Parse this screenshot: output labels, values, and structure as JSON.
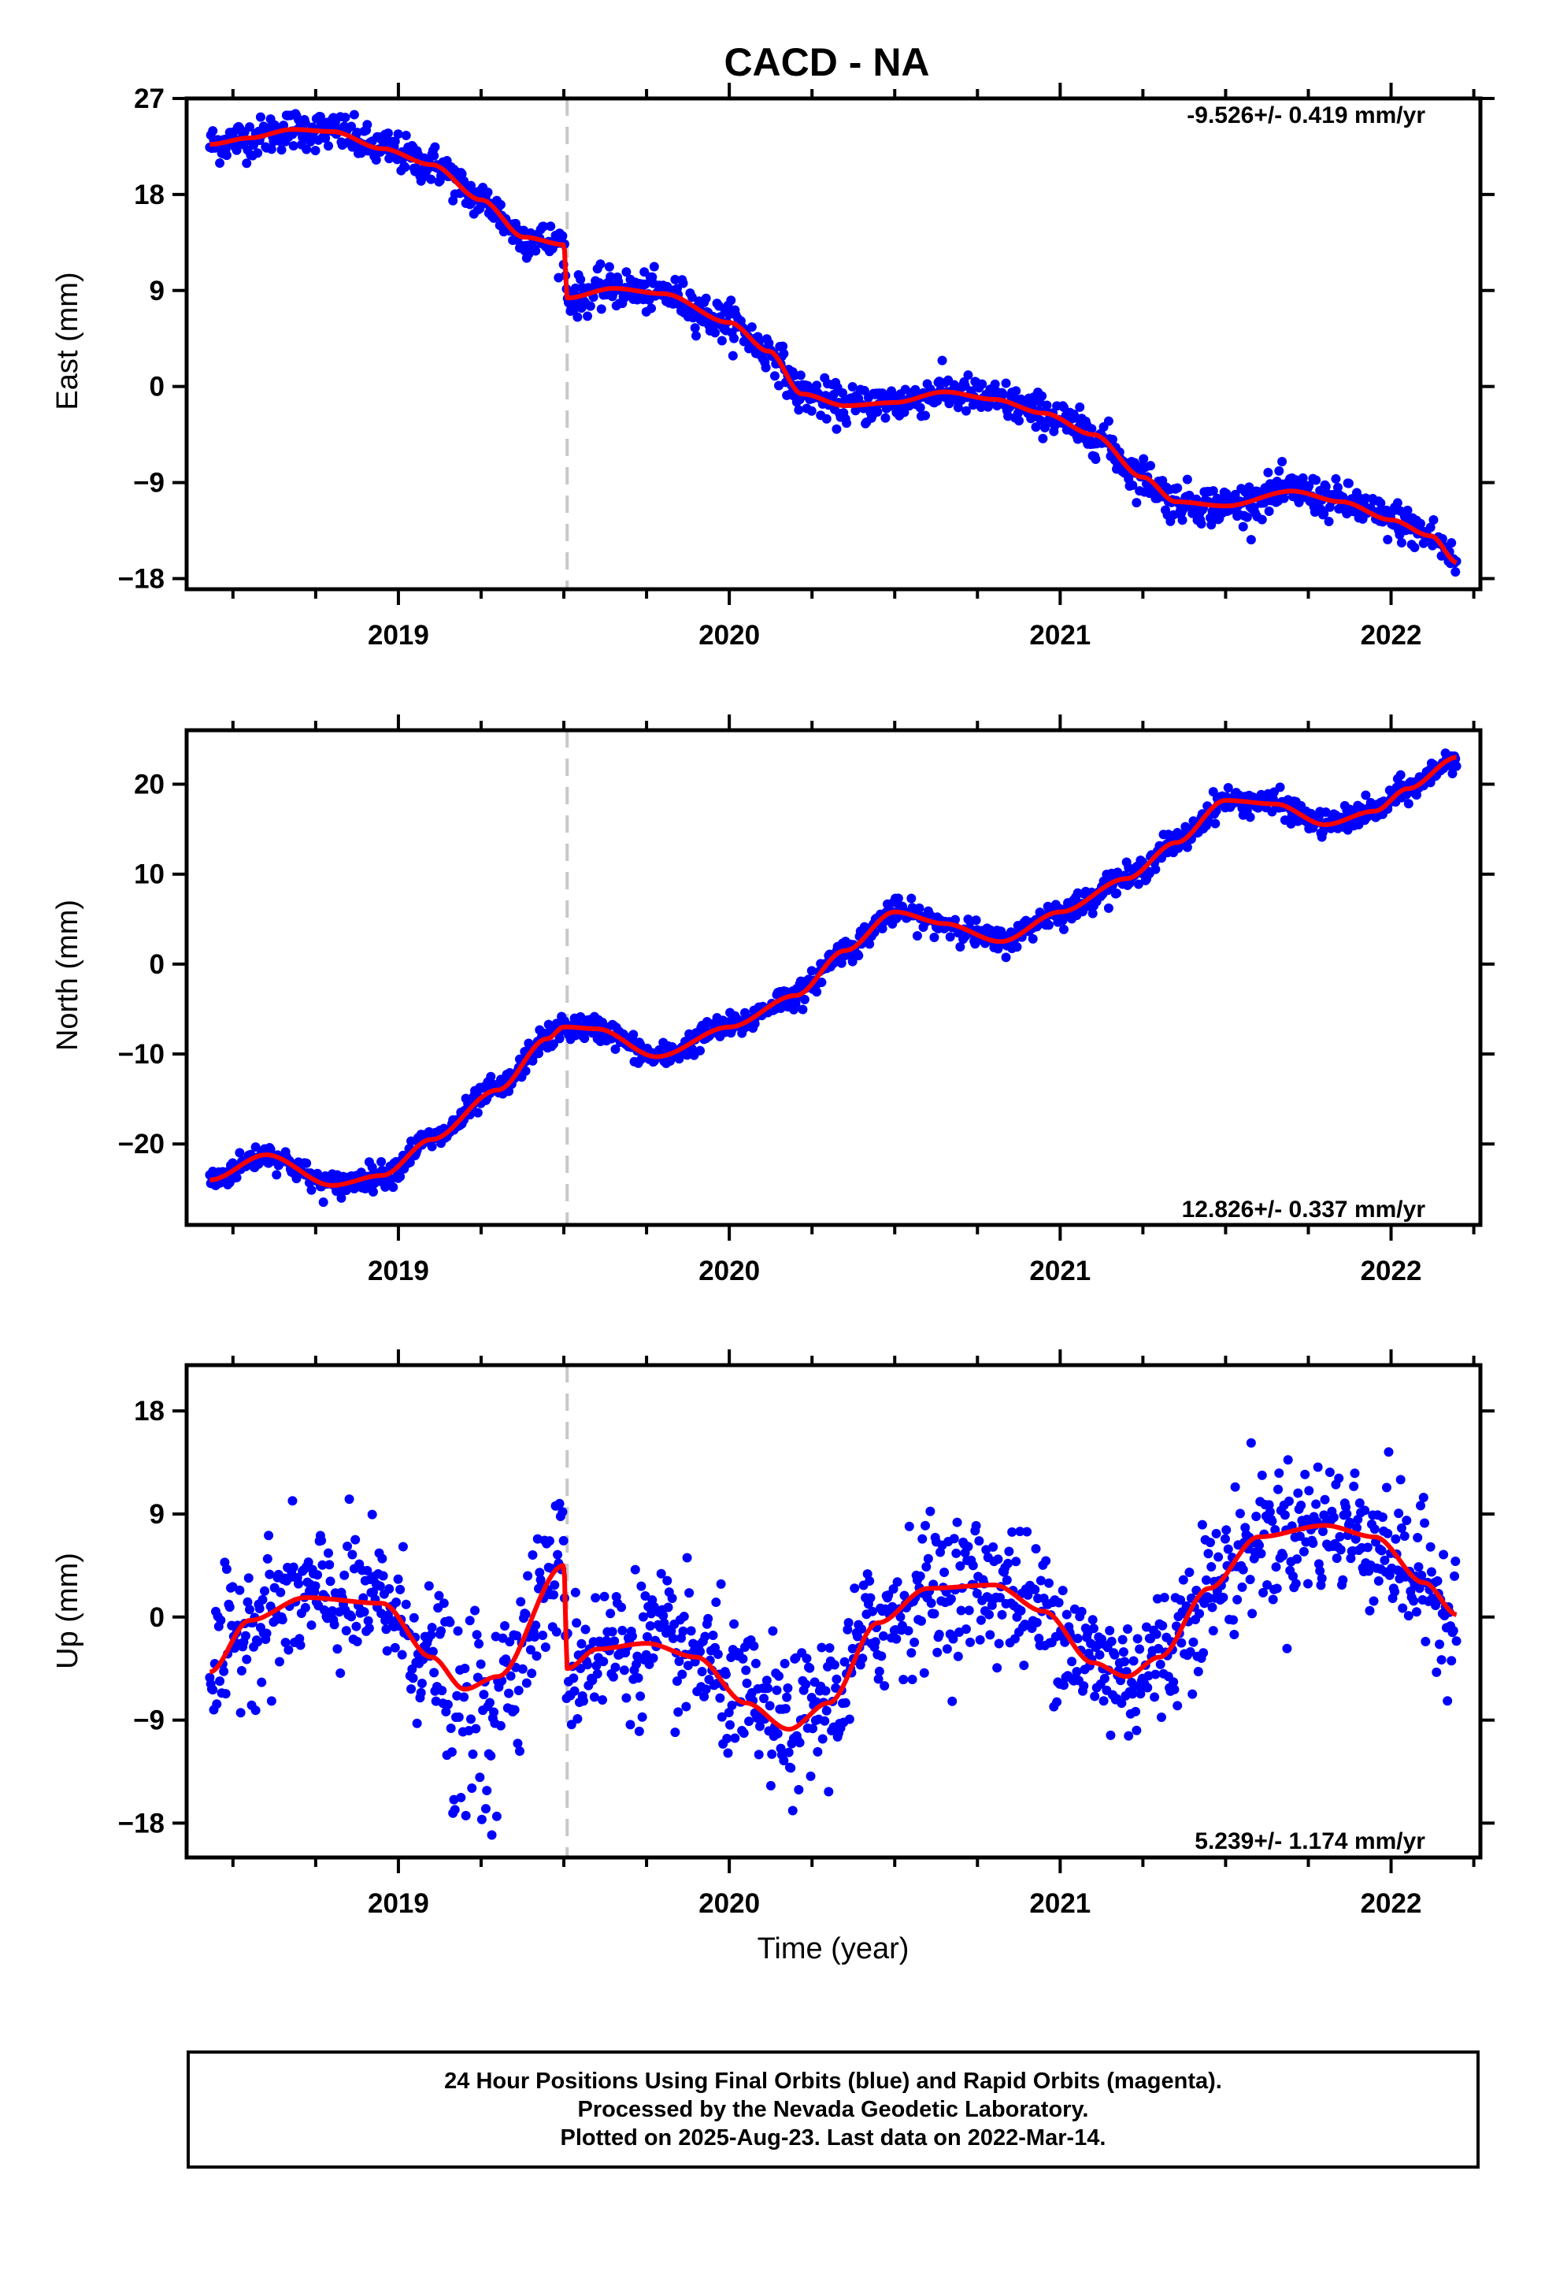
{
  "title": "CACD - NA",
  "colors": {
    "points": "#0000ff",
    "model": "#ff0000",
    "event_line": "#c8c8c8",
    "frame": "#000000"
  },
  "xlabel": "Time (year)",
  "caption": [
    "24 Hour Positions Using Final Orbits (blue) and Rapid Orbits (magenta).",
    "Processed by the Nevada Geodetic Laboratory.",
    "Plotted on 2025-Aug-23. Last data on 2022-Mar-14."
  ],
  "chart_data": [
    {
      "type": "scatter",
      "component": "east",
      "ylabel": "East (mm)",
      "rate_label": "-9.526+/- 0.419 mm/yr",
      "xlim": [
        2018.36,
        2022.27
      ],
      "ylim": [
        -19,
        27
      ],
      "yticks": [
        27,
        18,
        9,
        0,
        -9,
        -18
      ],
      "ytick_labels": [
        "27",
        "18",
        "9",
        "0",
        "-9",
        "-18"
      ],
      "xticks": [
        2019,
        2020,
        2021,
        2022
      ],
      "xtick_labels": [
        "2019",
        "2020",
        "2021",
        "2022"
      ],
      "event_line_x": 2019.51,
      "scatter_sd": 0.9,
      "model_knots": [
        [
          2018.43,
          22.7
        ],
        [
          2018.55,
          23.3
        ],
        [
          2018.68,
          24.1
        ],
        [
          2018.8,
          23.9
        ],
        [
          2018.95,
          22.3
        ],
        [
          2019.1,
          20.8
        ],
        [
          2019.25,
          17.5
        ],
        [
          2019.38,
          14.0
        ],
        [
          2019.5,
          13.3
        ],
        [
          2019.51,
          8.3
        ],
        [
          2019.65,
          9.2
        ],
        [
          2019.8,
          8.7
        ],
        [
          2020.0,
          6.0
        ],
        [
          2020.12,
          3.3
        ],
        [
          2020.22,
          -0.7
        ],
        [
          2020.35,
          -1.8
        ],
        [
          2020.5,
          -1.5
        ],
        [
          2020.65,
          -0.5
        ],
        [
          2020.8,
          -1.2
        ],
        [
          2020.95,
          -2.5
        ],
        [
          2021.1,
          -4.5
        ],
        [
          2021.25,
          -8.5
        ],
        [
          2021.35,
          -10.8
        ],
        [
          2021.5,
          -11.2
        ],
        [
          2021.7,
          -9.8
        ],
        [
          2021.85,
          -10.8
        ],
        [
          2022.0,
          -12.5
        ],
        [
          2022.12,
          -14.0
        ],
        [
          2022.2,
          -16.5
        ]
      ]
    },
    {
      "type": "scatter",
      "component": "north",
      "ylabel": "North (mm)",
      "rate_label": "12.826+/- 0.337 mm/yr",
      "xlim": [
        2018.36,
        2022.27
      ],
      "ylim": [
        -29,
        26
      ],
      "yticks": [
        20,
        10,
        0,
        -10,
        -20
      ],
      "ytick_labels": [
        "20",
        "10",
        "0",
        "-10",
        "-20"
      ],
      "xticks": [
        2019,
        2020,
        2021,
        2022
      ],
      "xtick_labels": [
        "2019",
        "2020",
        "2021",
        "2022"
      ],
      "event_line_x": 2019.51,
      "scatter_sd": 0.7,
      "model_knots": [
        [
          2018.43,
          -24.0
        ],
        [
          2018.6,
          -21.2
        ],
        [
          2018.8,
          -24.6
        ],
        [
          2018.95,
          -23.5
        ],
        [
          2019.1,
          -19.5
        ],
        [
          2019.3,
          -14.0
        ],
        [
          2019.45,
          -8.3
        ],
        [
          2019.5,
          -7.0
        ],
        [
          2019.51,
          -7.0
        ],
        [
          2019.6,
          -7.2
        ],
        [
          2019.78,
          -10.3
        ],
        [
          2020.0,
          -7.0
        ],
        [
          2020.2,
          -3.5
        ],
        [
          2020.35,
          1.5
        ],
        [
          2020.5,
          5.8
        ],
        [
          2020.65,
          4.5
        ],
        [
          2020.82,
          2.5
        ],
        [
          2021.0,
          5.8
        ],
        [
          2021.2,
          9.5
        ],
        [
          2021.35,
          13.5
        ],
        [
          2021.5,
          18.2
        ],
        [
          2021.65,
          17.8
        ],
        [
          2021.8,
          15.5
        ],
        [
          2021.95,
          17.0
        ],
        [
          2022.05,
          19.5
        ],
        [
          2022.2,
          23.0
        ]
      ]
    },
    {
      "type": "scatter",
      "component": "up",
      "ylabel": "Up (mm)",
      "rate_label": "5.239+/- 1.174 mm/yr",
      "xlim": [
        2018.36,
        2022.27
      ],
      "ylim": [
        -21,
        22
      ],
      "yticks": [
        18,
        9,
        0,
        -9,
        -18
      ],
      "ytick_labels": [
        "18",
        "9",
        "0",
        "-9",
        "-18"
      ],
      "xticks": [
        2019,
        2020,
        2021,
        2022
      ],
      "xtick_labels": [
        "2019",
        "2020",
        "2021",
        "2022"
      ],
      "event_line_x": 2019.51,
      "scatter_sd": 3.0,
      "model_knots": [
        [
          2018.43,
          -4.8
        ],
        [
          2018.55,
          -0.3
        ],
        [
          2018.72,
          1.7
        ],
        [
          2018.95,
          1.2
        ],
        [
          2019.1,
          -3.5
        ],
        [
          2019.2,
          -6.3
        ],
        [
          2019.3,
          -5.2
        ],
        [
          2019.5,
          4.5
        ],
        [
          2019.51,
          -4.5
        ],
        [
          2019.6,
          -2.8
        ],
        [
          2019.75,
          -2.3
        ],
        [
          2019.9,
          -3.5
        ],
        [
          2020.05,
          -7.5
        ],
        [
          2020.18,
          -9.8
        ],
        [
          2020.3,
          -7.5
        ],
        [
          2020.45,
          -0.5
        ],
        [
          2020.6,
          2.5
        ],
        [
          2020.8,
          2.8
        ],
        [
          2020.95,
          0.5
        ],
        [
          2021.1,
          -4.0
        ],
        [
          2021.2,
          -5.2
        ],
        [
          2021.3,
          -3.5
        ],
        [
          2021.45,
          2.5
        ],
        [
          2021.6,
          7.0
        ],
        [
          2021.8,
          8.0
        ],
        [
          2021.95,
          7.0
        ],
        [
          2022.1,
          3.0
        ],
        [
          2022.2,
          0.2
        ]
      ]
    }
  ]
}
